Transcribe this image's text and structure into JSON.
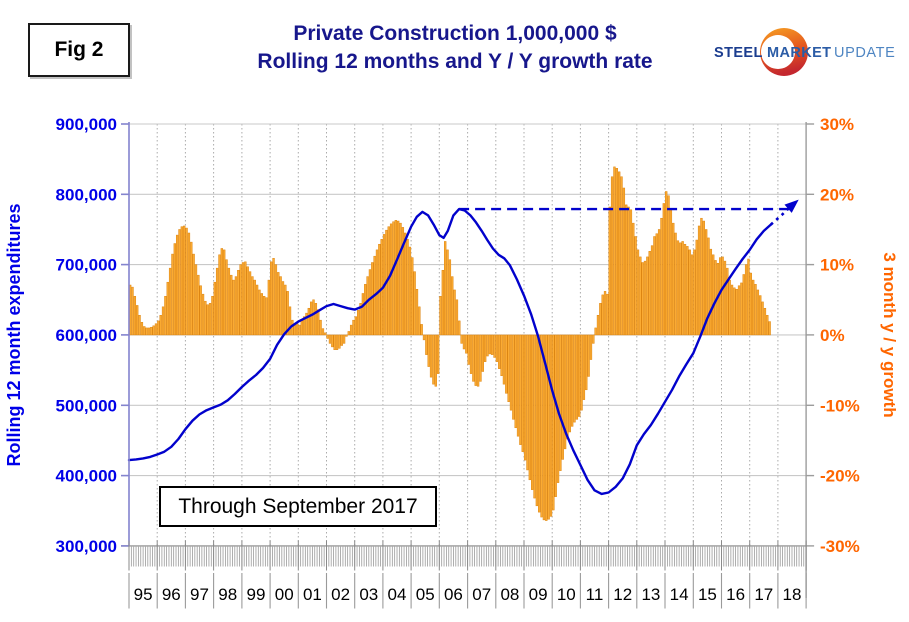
{
  "figure_label": "Fig 2",
  "title": {
    "line1": "Private Construction 1,000,000 $",
    "line2": "Rolling 12 months and Y / Y growth rate"
  },
  "logo": {
    "word1": "STEEL",
    "word2": "MARKET",
    "word3": "UPDATE"
  },
  "annotation_box": "Through September 2017",
  "colors": {
    "title": "#17178C",
    "line_blue": "#0202CC",
    "bar_fill": "#FBAB32",
    "bar_stroke": "#DD8511",
    "left_axis_text": "#0000E8",
    "right_axis_text": "#FF6600",
    "grid_solid": "#C9C9C9",
    "grid_dotted": "#ABABAB",
    "left_axis_line": "#8484CE",
    "frame_gray": "#9C9C9C"
  },
  "chart_data": {
    "type": "bar+line",
    "left_axis": {
      "label": "Rolling 12 month expenditures",
      "min": 300000,
      "max": 900000,
      "tick_step": 100000,
      "ticks": [
        "900,000",
        "800,000",
        "700,000",
        "600,000",
        "500,000",
        "400,000",
        "300,000"
      ]
    },
    "right_axis": {
      "label": "3 month y / y growth",
      "min": -30,
      "max": 30,
      "tick_step": 10,
      "ticks": [
        "30%",
        "20%",
        "10%",
        "0%",
        "-10%",
        "-20%",
        "-30%"
      ]
    },
    "x_axis": {
      "years": [
        "95",
        "96",
        "97",
        "98",
        "99",
        "00",
        "01",
        "02",
        "03",
        "04",
        "05",
        "06",
        "07",
        "08",
        "09",
        "10",
        "11",
        "12",
        "13",
        "14",
        "15",
        "16",
        "17",
        "18"
      ]
    },
    "bars": {
      "name": "3 month y / y growth",
      "start_month": "1995-01",
      "end_month": "2017-09",
      "monthly_values_pct": [
        7.1,
        6.8,
        5.5,
        4.2,
        2.8,
        1.8,
        1.2,
        1.0,
        1.0,
        1.1,
        1.3,
        1.6,
        2.0,
        2.8,
        4.0,
        5.5,
        7.5,
        9.5,
        11.5,
        13.0,
        14.2,
        15.0,
        15.4,
        15.5,
        15.2,
        14.5,
        13.2,
        11.5,
        10.0,
        8.5,
        7.0,
        5.8,
        4.8,
        4.3,
        4.5,
        5.5,
        7.5,
        9.5,
        11.4,
        12.3,
        12.1,
        10.7,
        9.5,
        8.5,
        7.8,
        8.3,
        9.2,
        10.0,
        10.3,
        10.4,
        9.7,
        9.0,
        8.3,
        7.8,
        7.1,
        6.4,
        5.9,
        5.5,
        5.3,
        7.8,
        10.4,
        10.9,
        10.0,
        8.9,
        8.3,
        7.6,
        7.1,
        6.2,
        4.0,
        2.1,
        1.4,
        1.7,
        1.4,
        2.1,
        2.6,
        3.1,
        3.8,
        4.7,
        5.0,
        4.5,
        3.6,
        2.1,
        0.9,
        0.3,
        -0.5,
        -1.2,
        -1.7,
        -2.1,
        -2.1,
        -1.9,
        -1.5,
        -1.2,
        -0.2,
        0.5,
        1.4,
        2.1,
        2.6,
        3.5,
        4.5,
        5.9,
        7.2,
        8.3,
        9.3,
        10.3,
        11.2,
        12.1,
        12.9,
        13.6,
        14.3,
        14.9,
        15.4,
        15.8,
        16.1,
        16.3,
        16.2,
        15.9,
        15.3,
        14.5,
        13.6,
        12.5,
        11.0,
        9.0,
        6.5,
        4.0,
        1.5,
        -0.7,
        -2.8,
        -4.5,
        -6.0,
        -7.0,
        -7.3,
        -5.5,
        5.5,
        9.2,
        13.3,
        12.1,
        10.7,
        8.3,
        6.4,
        5.0,
        2.0,
        -1.2,
        -2.0,
        -2.6,
        -4.2,
        -5.5,
        -6.6,
        -7.2,
        -7.3,
        -6.6,
        -5.2,
        -3.8,
        -3.0,
        -2.7,
        -2.8,
        -3.2,
        -3.8,
        -4.8,
        -5.8,
        -7.0,
        -8.3,
        -9.5,
        -10.7,
        -12.0,
        -13.2,
        -14.4,
        -15.6,
        -16.6,
        -17.8,
        -19.2,
        -20.6,
        -22.0,
        -23.2,
        -24.3,
        -25.2,
        -25.9,
        -26.3,
        -26.4,
        -26.2,
        -25.8,
        -24.9,
        -23.0,
        -21.0,
        -19.3,
        -17.7,
        -16.2,
        -14.8,
        -13.8,
        -13.0,
        -12.4,
        -12.0,
        -11.6,
        -10.7,
        -9.2,
        -7.8,
        -5.9,
        -3.5,
        -1.2,
        1.0,
        2.8,
        4.5,
        5.7,
        6.2,
        5.8,
        18.2,
        22.5,
        23.9,
        23.7,
        23.2,
        22.5,
        20.9,
        18.5,
        18.2,
        17.8,
        15.9,
        14.0,
        12.1,
        11.1,
        10.3,
        10.5,
        11.1,
        11.9,
        12.7,
        14.0,
        14.4,
        15.0,
        16.6,
        18.7,
        20.4,
        19.8,
        18.0,
        15.9,
        14.5,
        13.4,
        13.1,
        13.3,
        12.9,
        12.6,
        12.1,
        11.4,
        12.1,
        13.5,
        15.5,
        16.6,
        16.2,
        15.0,
        13.8,
        12.2,
        11.4,
        10.6,
        10.2,
        11.0,
        11.1,
        10.5,
        9.5,
        7.8,
        7.1,
        6.7,
        6.5,
        7.0,
        7.4,
        8.6,
        10.0,
        10.8,
        8.8,
        7.8,
        7.2,
        6.4,
        5.6,
        4.7,
        3.8,
        2.8,
        1.9
      ]
    },
    "line": {
      "name": "Rolling 12 month expenditures",
      "points": [
        [
          1995.0,
          422000
        ],
        [
          1995.25,
          423000
        ],
        [
          1995.5,
          424500
        ],
        [
          1995.75,
          426500
        ],
        [
          1996.0,
          430000
        ],
        [
          1996.25,
          434000
        ],
        [
          1996.5,
          441000
        ],
        [
          1996.75,
          452000
        ],
        [
          1997.0,
          466000
        ],
        [
          1997.25,
          478000
        ],
        [
          1997.5,
          487000
        ],
        [
          1997.75,
          493000
        ],
        [
          1998.0,
          497000
        ],
        [
          1998.25,
          501000
        ],
        [
          1998.5,
          507000
        ],
        [
          1998.75,
          516000
        ],
        [
          1999.0,
          526000
        ],
        [
          1999.25,
          535000
        ],
        [
          1999.5,
          543000
        ],
        [
          1999.75,
          553000
        ],
        [
          2000.0,
          566000
        ],
        [
          2000.25,
          586000
        ],
        [
          2000.5,
          601000
        ],
        [
          2000.75,
          612000
        ],
        [
          2001.0,
          619000
        ],
        [
          2001.25,
          624000
        ],
        [
          2001.5,
          629000
        ],
        [
          2001.75,
          635000
        ],
        [
          2002.0,
          641000
        ],
        [
          2002.25,
          644000
        ],
        [
          2002.5,
          641000
        ],
        [
          2002.75,
          638000
        ],
        [
          2003.0,
          636000
        ],
        [
          2003.25,
          640000
        ],
        [
          2003.5,
          650000
        ],
        [
          2003.75,
          658000
        ],
        [
          2004.0,
          667000
        ],
        [
          2004.25,
          684000
        ],
        [
          2004.5,
          707000
        ],
        [
          2004.75,
          731000
        ],
        [
          2005.0,
          754000
        ],
        [
          2005.2,
          768000
        ],
        [
          2005.4,
          775000
        ],
        [
          2005.6,
          770000
        ],
        [
          2005.8,
          757000
        ],
        [
          2006.0,
          742000
        ],
        [
          2006.15,
          738000
        ],
        [
          2006.3,
          748000
        ],
        [
          2006.5,
          770000
        ],
        [
          2006.7,
          779000
        ],
        [
          2006.9,
          777000
        ],
        [
          2007.1,
          770000
        ],
        [
          2007.3,
          760000
        ],
        [
          2007.5,
          748000
        ],
        [
          2007.7,
          735000
        ],
        [
          2007.9,
          723000
        ],
        [
          2008.1,
          714000
        ],
        [
          2008.3,
          709000
        ],
        [
          2008.5,
          699000
        ],
        [
          2008.75,
          679000
        ],
        [
          2009.0,
          656000
        ],
        [
          2009.25,
          630000
        ],
        [
          2009.5,
          598000
        ],
        [
          2009.75,
          560000
        ],
        [
          2010.0,
          521000
        ],
        [
          2010.25,
          487000
        ],
        [
          2010.5,
          459000
        ],
        [
          2010.75,
          436000
        ],
        [
          2011.0,
          415000
        ],
        [
          2011.25,
          394000
        ],
        [
          2011.5,
          379000
        ],
        [
          2011.75,
          374000
        ],
        [
          2012.0,
          376000
        ],
        [
          2012.25,
          384000
        ],
        [
          2012.5,
          396000
        ],
        [
          2012.75,
          416000
        ],
        [
          2013.0,
          443000
        ],
        [
          2013.25,
          459000
        ],
        [
          2013.5,
          472000
        ],
        [
          2013.75,
          488000
        ],
        [
          2014.0,
          505000
        ],
        [
          2014.25,
          522000
        ],
        [
          2014.5,
          541000
        ],
        [
          2014.75,
          558000
        ],
        [
          2015.0,
          574000
        ],
        [
          2015.25,
          598000
        ],
        [
          2015.5,
          624000
        ],
        [
          2015.75,
          645000
        ],
        [
          2016.0,
          664000
        ],
        [
          2016.25,
          679000
        ],
        [
          2016.5,
          694000
        ],
        [
          2016.75,
          708000
        ],
        [
          2017.0,
          721000
        ],
        [
          2017.25,
          736000
        ],
        [
          2017.5,
          748000
        ],
        [
          2017.75,
          757000
        ]
      ]
    },
    "dashed_reference_line": {
      "value": 779000,
      "from": 2006.7,
      "to": 2018.4
    },
    "dotted_projection": {
      "arrow": true,
      "points": [
        [
          2017.75,
          757000
        ],
        [
          2017.95,
          764000
        ],
        [
          2018.15,
          771000
        ],
        [
          2018.35,
          779000
        ],
        [
          2018.55,
          786000
        ]
      ]
    }
  }
}
